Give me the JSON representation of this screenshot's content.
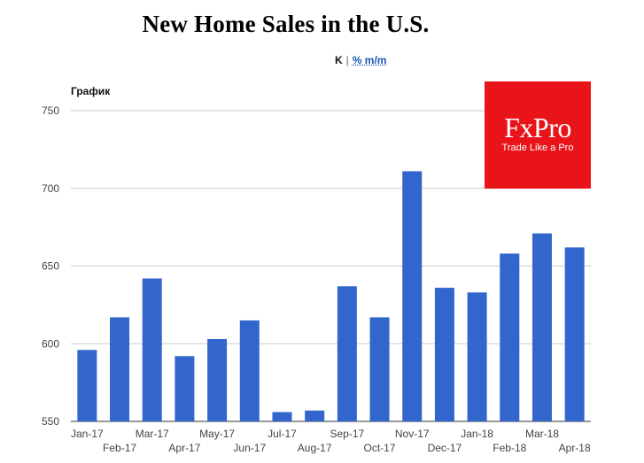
{
  "title": "New Home Sales in the U.S.",
  "toggle": {
    "units_label": "K",
    "separator": "|",
    "change_label": "% m/m"
  },
  "panel_label": "График",
  "logo": {
    "brand": "FxPro",
    "tagline": "Trade Like a Pro",
    "color": "#e8141a"
  },
  "chart_data": {
    "type": "bar",
    "categories": [
      "Jan-17",
      "Feb-17",
      "Mar-17",
      "Apr-17",
      "May-17",
      "Jun-17",
      "Jul-17",
      "Aug-17",
      "Sep-17",
      "Oct-17",
      "Nov-17",
      "Dec-17",
      "Jan-18",
      "Feb-18",
      "Mar-18",
      "Apr-18"
    ],
    "values": [
      596,
      617,
      642,
      592,
      603,
      615,
      556,
      557,
      637,
      617,
      711,
      636,
      633,
      658,
      671,
      662
    ],
    "ylim": [
      550,
      750
    ],
    "yticks": [
      550,
      600,
      650,
      700,
      750
    ],
    "grid": true,
    "bar_color": "#3366cc"
  }
}
